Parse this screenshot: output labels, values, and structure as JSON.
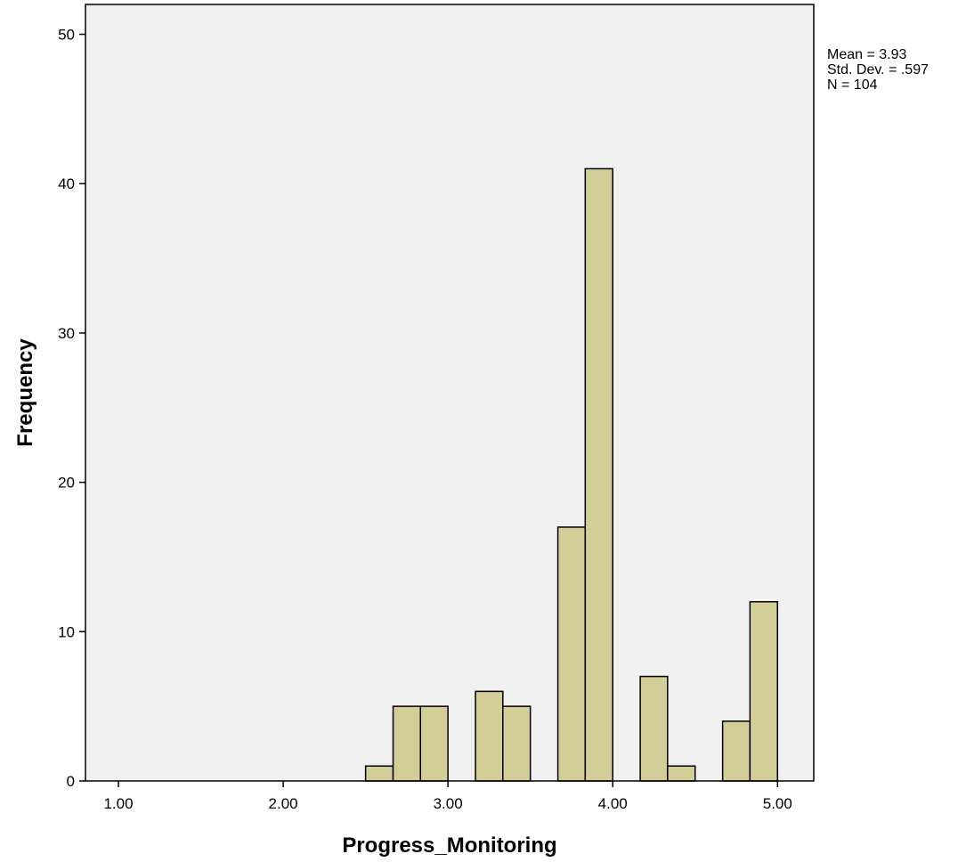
{
  "chart_data": {
    "type": "bar",
    "title": "",
    "xlabel": "Progress_Monitoring",
    "ylabel": "Frequency",
    "xlim": [
      0.8,
      5.22
    ],
    "ylim": [
      0,
      52
    ],
    "x_ticks": [
      1,
      2,
      3,
      4,
      5
    ],
    "x_tick_labels": [
      "1.00",
      "2.00",
      "3.00",
      "4.00",
      "5.00"
    ],
    "y_ticks": [
      0,
      10,
      20,
      30,
      40,
      50
    ],
    "y_tick_labels": [
      "0",
      "10",
      "20",
      "30",
      "40",
      "50"
    ],
    "bin_width": 0.167,
    "bins": [
      {
        "start": 2.5,
        "end": 2.667,
        "count": 1
      },
      {
        "start": 2.667,
        "end": 2.833,
        "count": 5
      },
      {
        "start": 2.833,
        "end": 3.0,
        "count": 5
      },
      {
        "start": 3.167,
        "end": 3.333,
        "count": 6
      },
      {
        "start": 3.333,
        "end": 3.5,
        "count": 5
      },
      {
        "start": 3.667,
        "end": 3.833,
        "count": 17
      },
      {
        "start": 3.833,
        "end": 4.0,
        "count": 41
      },
      {
        "start": 4.167,
        "end": 4.333,
        "count": 7
      },
      {
        "start": 4.333,
        "end": 4.5,
        "count": 1
      },
      {
        "start": 4.667,
        "end": 4.833,
        "count": 4
      },
      {
        "start": 4.833,
        "end": 5.0,
        "count": 12
      }
    ],
    "grid": false,
    "stats": [
      "Mean = 3.93",
      "Std. Dev. = .597",
      "N = 104"
    ],
    "colors": {
      "plot_background": "#f0f0f0",
      "bar_fill": "#d3ce97",
      "bar_stroke": "#000000",
      "frame": "#000000"
    }
  }
}
